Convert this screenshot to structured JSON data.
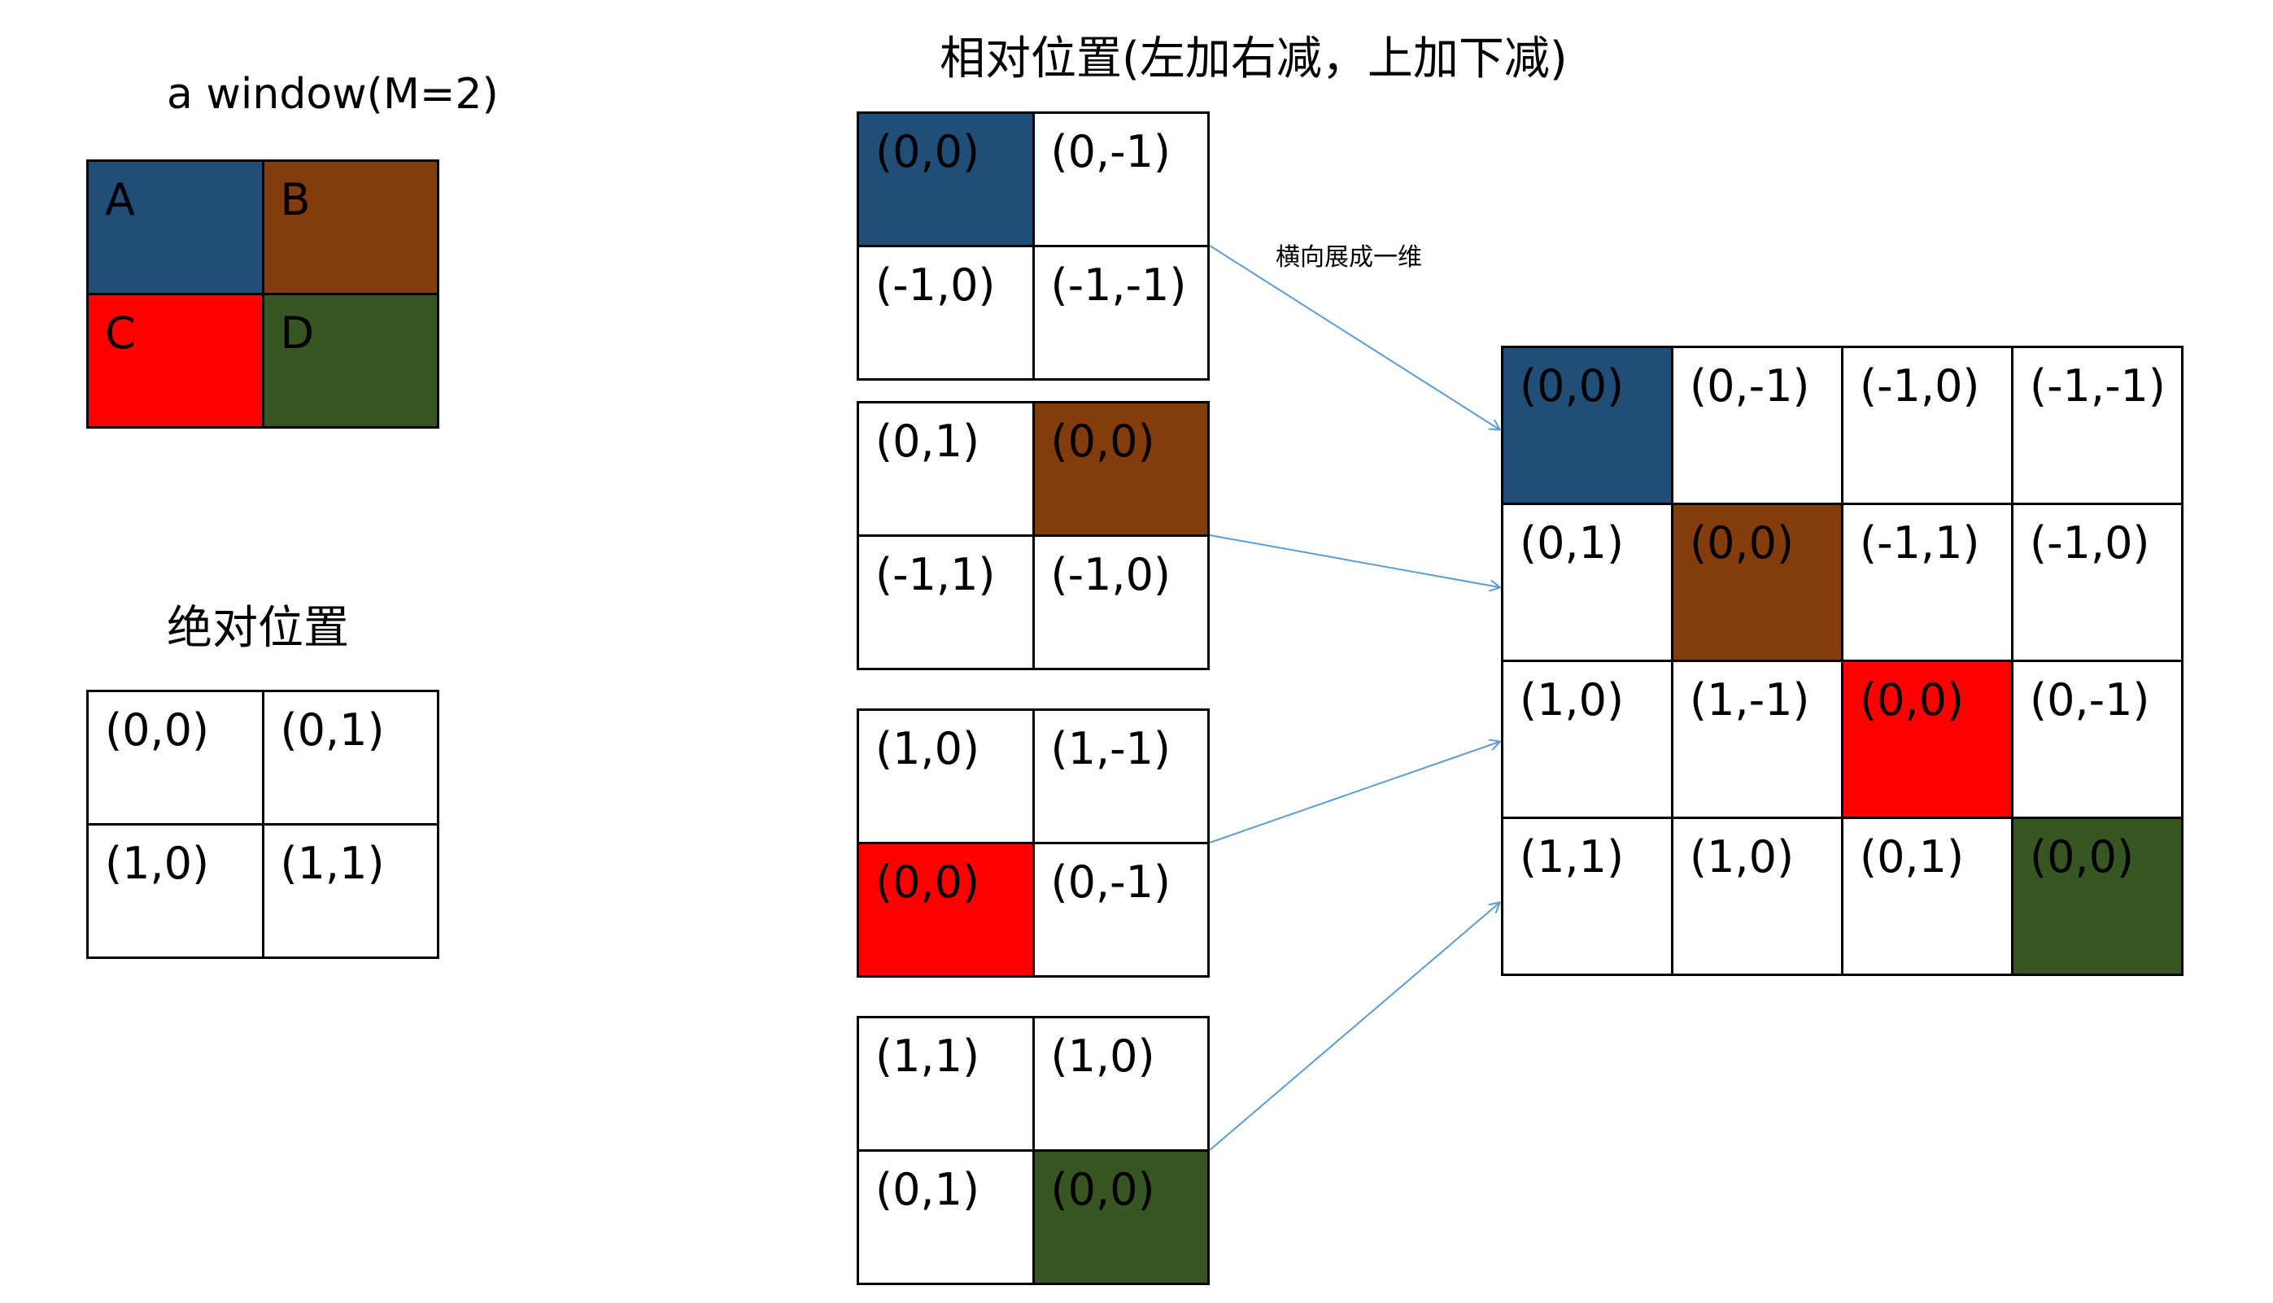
{
  "colors": {
    "A": "#1f4e79",
    "B": "#843c0c",
    "C": "#ff0000",
    "D": "#375623",
    "plain": "#ffffff",
    "arrow": "#5b9bd5"
  },
  "window_panel": {
    "title": "a window(M=2)",
    "cells": [
      {
        "label": "A",
        "color": "A"
      },
      {
        "label": "B",
        "color": "B"
      },
      {
        "label": "C",
        "color": "C"
      },
      {
        "label": "D",
        "color": "D"
      }
    ]
  },
  "absolute_panel": {
    "title": "绝对位置",
    "cells": [
      {
        "label": "(0,0)",
        "color": "plain"
      },
      {
        "label": "(0,1)",
        "color": "plain"
      },
      {
        "label": "(1,0)",
        "color": "plain"
      },
      {
        "label": "(1,1)",
        "color": "plain"
      }
    ]
  },
  "relative_panel": {
    "title": "相对位置(左加右减，上加下减)",
    "grids": [
      {
        "cells": [
          {
            "label": "(0,0)",
            "color": "A"
          },
          {
            "label": "(0,-1)",
            "color": "plain"
          },
          {
            "label": "(-1,0)",
            "color": "plain"
          },
          {
            "label": "(-1,-1)",
            "color": "plain"
          }
        ]
      },
      {
        "cells": [
          {
            "label": "(0,1)",
            "color": "plain"
          },
          {
            "label": "(0,0)",
            "color": "B"
          },
          {
            "label": "(-1,1)",
            "color": "plain"
          },
          {
            "label": "(-1,0)",
            "color": "plain"
          }
        ]
      },
      {
        "cells": [
          {
            "label": "(1,0)",
            "color": "plain"
          },
          {
            "label": "(1,-1)",
            "color": "plain"
          },
          {
            "label": "(0,0)",
            "color": "C"
          },
          {
            "label": "(0,-1)",
            "color": "plain"
          }
        ]
      },
      {
        "cells": [
          {
            "label": "(1,1)",
            "color": "plain"
          },
          {
            "label": "(1,0)",
            "color": "plain"
          },
          {
            "label": "(0,1)",
            "color": "plain"
          },
          {
            "label": "(0,0)",
            "color": "D"
          }
        ]
      }
    ]
  },
  "flatten_label": "横向展成一维",
  "flattened_matrix": {
    "rows": [
      [
        {
          "label": "(0,0)",
          "color": "A"
        },
        {
          "label": "(0,-1)",
          "color": "plain"
        },
        {
          "label": "(-1,0)",
          "color": "plain"
        },
        {
          "label": "(-1,-1)",
          "color": "plain"
        }
      ],
      [
        {
          "label": "(0,1)",
          "color": "plain"
        },
        {
          "label": "(0,0)",
          "color": "B"
        },
        {
          "label": "(-1,1)",
          "color": "plain"
        },
        {
          "label": "(-1,0)",
          "color": "plain"
        }
      ],
      [
        {
          "label": "(1,0)",
          "color": "plain"
        },
        {
          "label": "(1,-1)",
          "color": "plain"
        },
        {
          "label": "(0,0)",
          "color": "C"
        },
        {
          "label": "(0,-1)",
          "color": "plain"
        }
      ],
      [
        {
          "label": "(1,1)",
          "color": "plain"
        },
        {
          "label": "(1,0)",
          "color": "plain"
        },
        {
          "label": "(0,1)",
          "color": "plain"
        },
        {
          "label": "(0,0)",
          "color": "D"
        }
      ]
    ]
  }
}
